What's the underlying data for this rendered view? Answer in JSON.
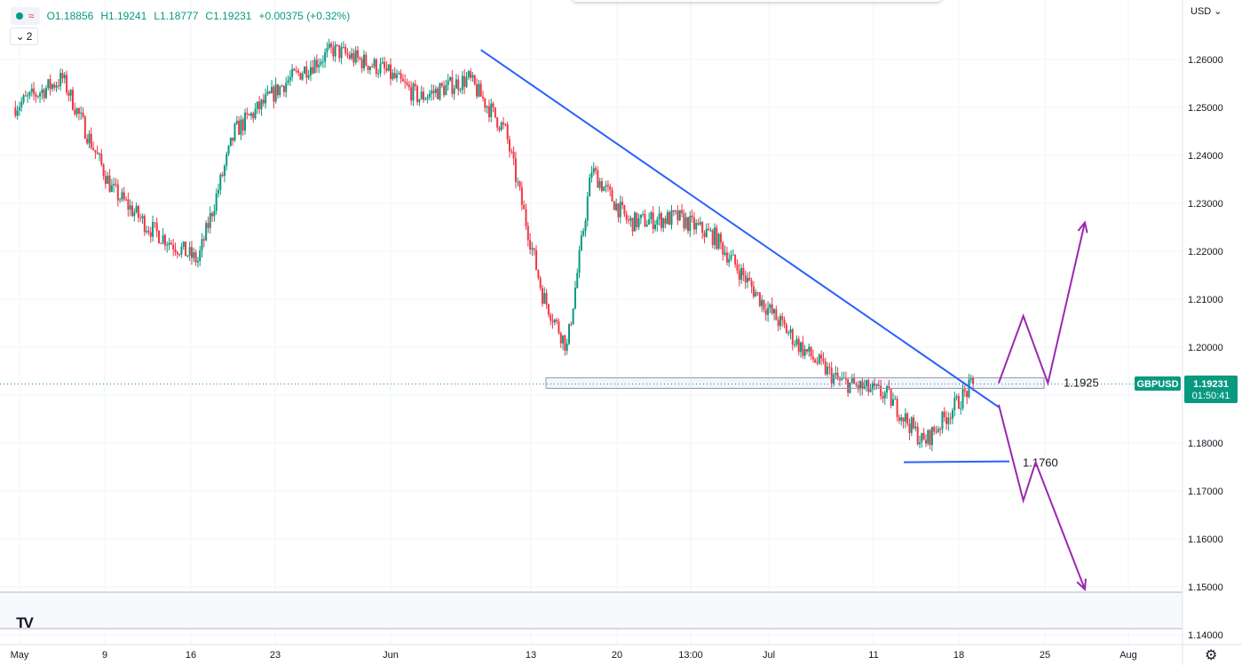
{
  "legend": {
    "open": "O1.18856",
    "high": "H1.19241",
    "low": "L1.18777",
    "close": "C1.19231",
    "change": "+0.00375 (+0.32%)",
    "indicator_count": "2",
    "up_color": "#089981",
    "down_color": "#f23645"
  },
  "currency": "USD",
  "symbol_tag": "GBPUSD",
  "price_tag": "1.19231",
  "countdown": "01:50:41",
  "colors": {
    "up": "#089981",
    "down": "#f23645",
    "trendline": "#2962ff",
    "projection": "#9c27b0",
    "accent_tag": "#089981"
  },
  "icons": [
    "chart-type-icon",
    "tradingview-logo-icon",
    "settings-gear-icon",
    "chevron-down-icon"
  ],
  "chart_data": {
    "type": "line",
    "ylim": [
      1.1375,
      1.2675
    ],
    "y_ticks": [
      "1.26000",
      "1.25000",
      "1.24000",
      "1.23000",
      "1.22000",
      "1.21000",
      "1.20000",
      "1.19000",
      "1.18000",
      "1.17000",
      "1.16000",
      "1.15000",
      "1.14000"
    ],
    "x_ticks": [
      "May",
      "9",
      "16",
      "23",
      "Jun",
      "13",
      "20",
      "13:00",
      "Jul",
      "11",
      "18",
      "25",
      "Aug"
    ],
    "series": [
      {
        "x": [
          "May 1",
          "May 5",
          "May 9",
          "May 12",
          "May 16",
          "May 19",
          "May 23",
          "May 27",
          "May 31",
          "Jun 3",
          "Jun 7",
          "Jun 10",
          "Jun 13",
          "Jun 15",
          "Jun 17",
          "Jun 20",
          "Jun 24",
          "Jun 27",
          "Jul 1",
          "Jul 4",
          "Jul 7",
          "Jul 11",
          "Jul 14",
          "Jul 18"
        ],
        "values": [
          1.25,
          1.256,
          1.233,
          1.225,
          1.218,
          1.245,
          1.255,
          1.262,
          1.258,
          1.252,
          1.256,
          1.245,
          1.211,
          1.2,
          1.237,
          1.226,
          1.227,
          1.223,
          1.209,
          1.2,
          1.193,
          1.19,
          1.18,
          1.1923
        ]
      }
    ],
    "annotations": [
      {
        "type": "horizontal-zone",
        "label": "1.1925",
        "value": 1.1925
      },
      {
        "type": "horizontal-level",
        "label": "1.1760",
        "value": 1.176
      },
      {
        "type": "trendline",
        "from": [
          "Jun 8",
          1.262
        ],
        "to": [
          "Jul 19",
          1.1875
        ]
      },
      {
        "type": "bullish-path",
        "points": [
          [
            "Jul 19",
            1.1925
          ],
          [
            "Jul 21",
            1.2065
          ],
          [
            "Jul 23",
            1.1925
          ],
          [
            "Jul 26",
            1.226
          ]
        ]
      },
      {
        "type": "bearish-path",
        "points": [
          [
            "Jul 19",
            1.188
          ],
          [
            "Jul 21",
            1.168
          ],
          [
            "Jul 22",
            1.176
          ],
          [
            "Jul 26",
            1.1495
          ]
        ]
      }
    ]
  }
}
